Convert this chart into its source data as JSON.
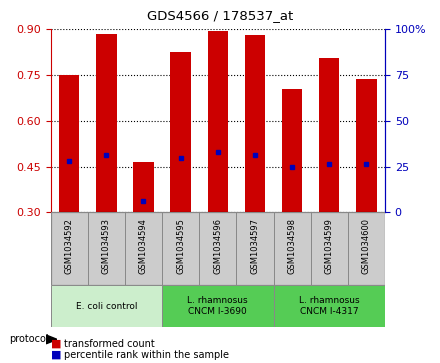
{
  "title": "GDS4566 / 178537_at",
  "samples": [
    "GSM1034592",
    "GSM1034593",
    "GSM1034594",
    "GSM1034595",
    "GSM1034596",
    "GSM1034597",
    "GSM1034598",
    "GSM1034599",
    "GSM1034600"
  ],
  "bar_tops": [
    0.75,
    0.885,
    0.465,
    0.825,
    0.895,
    0.882,
    0.705,
    0.805,
    0.735
  ],
  "bar_bottom": 0.3,
  "percentile_ranks": [
    0.468,
    0.488,
    0.338,
    0.478,
    0.498,
    0.488,
    0.448,
    0.458,
    0.458
  ],
  "bar_color": "#CC0000",
  "percentile_color": "#0000BB",
  "ylim_left": [
    0.3,
    0.9
  ],
  "ylim_right": [
    0,
    100
  ],
  "yticks_left": [
    0.3,
    0.45,
    0.6,
    0.75,
    0.9
  ],
  "yticks_right": [
    0,
    25,
    50,
    75,
    100
  ],
  "groups": [
    {
      "label": "E. coli control",
      "start": 0,
      "end": 3,
      "color": "#cceecc"
    },
    {
      "label": "L. rhamnosus\nCNCM I-3690",
      "start": 3,
      "end": 6,
      "color": "#55cc55"
    },
    {
      "label": "L. rhamnosus\nCNCM I-4317",
      "start": 6,
      "end": 9,
      "color": "#55cc55"
    }
  ],
  "protocol_label": "protocol",
  "legend_items": [
    {
      "label": "transformed count",
      "color": "#CC0000"
    },
    {
      "label": "percentile rank within the sample",
      "color": "#0000BB"
    }
  ],
  "bg_color": "#ffffff",
  "grid_color": "#000000",
  "left_axis_color": "#CC0000",
  "right_axis_color": "#0000BB",
  "bar_width": 0.55,
  "sample_box_color": "#cccccc",
  "figsize": [
    4.4,
    3.63
  ],
  "dpi": 100
}
